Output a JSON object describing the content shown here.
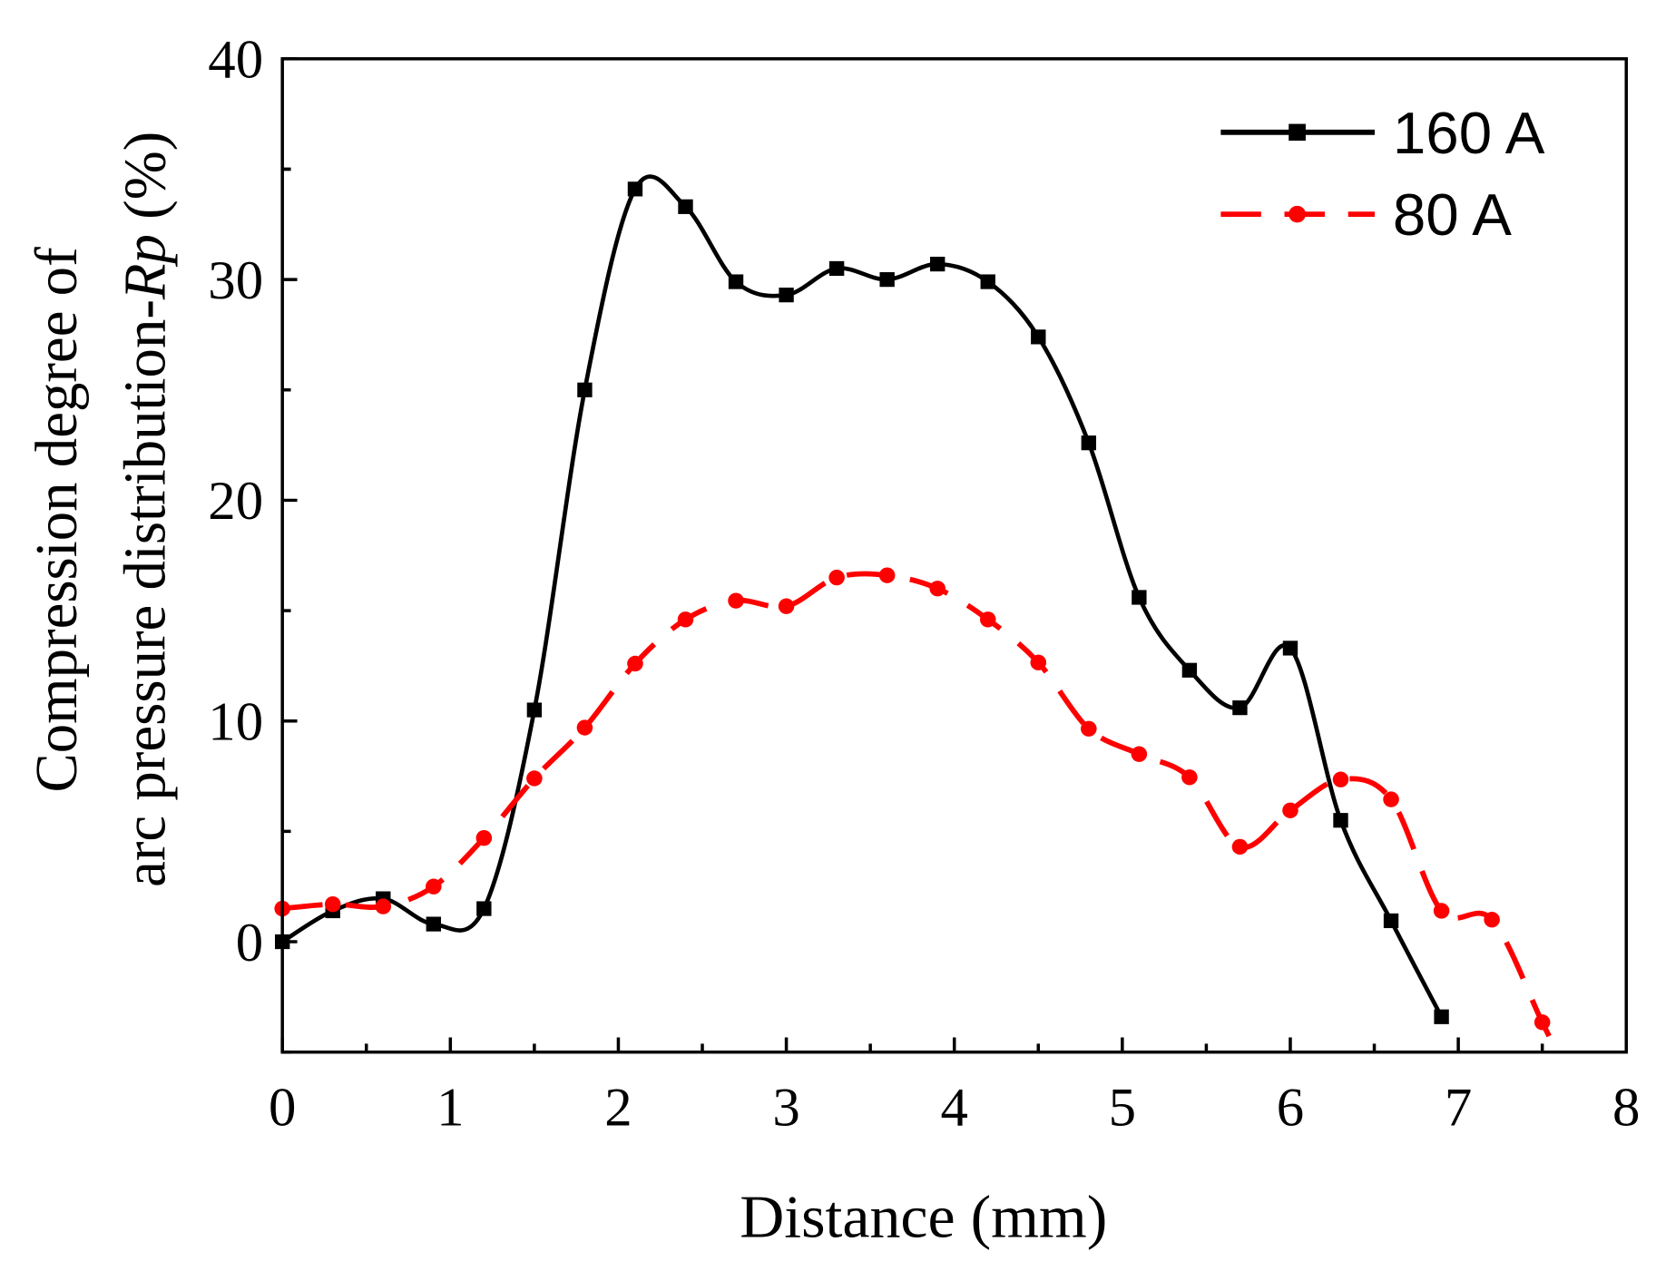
{
  "chart_data": {
    "type": "line",
    "title": "",
    "xlabel": "Distance (mm)",
    "ylabel_line1": "Compression degree of",
    "ylabel_line2_prefix": "arc pressure distribution-",
    "ylabel_line2_italic": "Rp",
    "ylabel_line2_suffix": " (%)",
    "xlim": [
      0,
      8
    ],
    "ylim": [
      -5,
      40
    ],
    "xticks": [
      "0",
      "1",
      "2",
      "3",
      "4",
      "5",
      "6",
      "7",
      "8"
    ],
    "yticks": [
      "0",
      "10",
      "20",
      "30",
      "40"
    ],
    "grid": false,
    "legend_placement": "top-right",
    "series": [
      {
        "name": "160 A",
        "color": "#000000",
        "marker": "square",
        "line_style": "solid",
        "x": [
          0,
          0.3,
          0.6,
          0.9,
          1.2,
          1.5,
          1.8,
          2.1,
          2.4,
          2.7,
          3.0,
          3.3,
          3.6,
          3.9,
          4.2,
          4.5,
          4.8,
          5.1,
          5.4,
          5.7,
          6.0,
          6.3,
          6.6,
          6.9
        ],
        "y": [
          0,
          1.4,
          1.95,
          0.8,
          1.5,
          10.5,
          25.0,
          34.1,
          33.3,
          29.9,
          29.3,
          30.5,
          30.0,
          30.7,
          29.9,
          27.4,
          22.6,
          15.6,
          12.3,
          10.6,
          13.3,
          5.5,
          0.95,
          -3.4
        ]
      },
      {
        "name": "80 A",
        "color": "#ff0000",
        "marker": "circle",
        "line_style": "dashed",
        "x": [
          0,
          0.3,
          0.6,
          0.9,
          1.2,
          1.5,
          1.8,
          2.1,
          2.4,
          2.7,
          3.0,
          3.3,
          3.6,
          3.9,
          4.2,
          4.5,
          4.8,
          5.1,
          5.4,
          5.7,
          6.0,
          6.3,
          6.6,
          6.9,
          7.2,
          7.5
        ],
        "y": [
          1.5,
          1.7,
          1.6,
          2.5,
          4.7,
          7.4,
          9.7,
          12.6,
          14.6,
          15.45,
          15.2,
          16.5,
          16.6,
          16.0,
          14.6,
          12.65,
          9.65,
          8.5,
          7.45,
          4.3,
          5.95,
          7.35,
          6.45,
          1.4,
          1.0,
          -3.65
        ]
      }
    ]
  }
}
